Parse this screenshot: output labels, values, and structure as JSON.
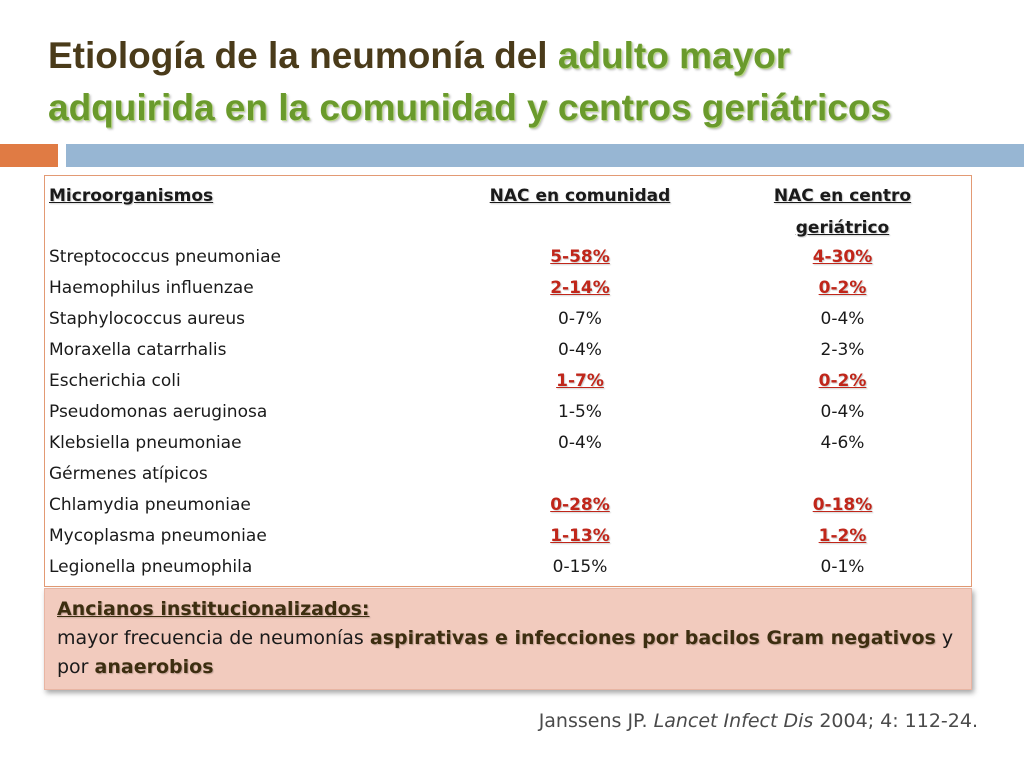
{
  "title": {
    "part1": "Etiología de la neumonía del ",
    "highlight1": "adulto mayor",
    "highlight2": "adquirida en la comunidad y centros geriátricos"
  },
  "colors": {
    "accent_orange": "#e07b44",
    "accent_blue": "#97b6d3",
    "highlight_green": "#6a9a2c",
    "value_red": "#c0261a",
    "note_bg": "#f2cbbe"
  },
  "table": {
    "headers": {
      "col1": "Microorganismos",
      "col2": "NAC en comunidad",
      "col3_line1": "NAC en centro",
      "col3_line2": "geriátrico"
    },
    "rows": [
      {
        "name": "Streptococcus pneumoniae",
        "v1": "5-58%",
        "v2": "4-30%",
        "emph": true
      },
      {
        "name": "Haemophilus influenzae",
        "v1": "2-14%",
        "v2": "0-2%",
        "emph": true
      },
      {
        "name": "Staphylococcus aureus",
        "v1": "0-7%",
        "v2": "0-4%",
        "emph": false
      },
      {
        "name": "Moraxella catarrhalis",
        "v1": "0-4%",
        "v2": "2-3%",
        "emph": false
      },
      {
        "name": "Escherichia coli",
        "v1": "1-7%",
        "v2": "0-2%",
        "emph": true
      },
      {
        "name": "Pseudomonas aeruginosa",
        "v1": "1-5%",
        "v2": "0-4%",
        "emph": false
      },
      {
        "name": "Klebsiella pneumoniae",
        "v1": "0-4%",
        "v2": "4-6%",
        "emph": false
      },
      {
        "name": "Gérmenes atípicos",
        "v1": "",
        "v2": "",
        "emph": false
      },
      {
        "name": "Chlamydia pneumoniae",
        "v1": "0-28%",
        "v2": "0-18%",
        "emph": true
      },
      {
        "name": "Mycoplasma pneumoniae",
        "v1": "1-13%",
        "v2": "1-2%",
        "emph": true
      },
      {
        "name": "Legionella pneumophila",
        "v1": "0-15%",
        "v2": "0-1%",
        "emph": false
      }
    ]
  },
  "note": {
    "heading": "Ancianos institucionalizados:",
    "text1": "mayor frecuencia de neumonías ",
    "bold1": "aspirativas e infecciones por bacilos Gram negativos",
    "text2": " y",
    "text3": "por ",
    "bold2": "anaerobios"
  },
  "citation": {
    "author": "Janssens JP. ",
    "journal": "Lancet Infect Dis",
    "details": " 2004; 4: 112-24."
  }
}
